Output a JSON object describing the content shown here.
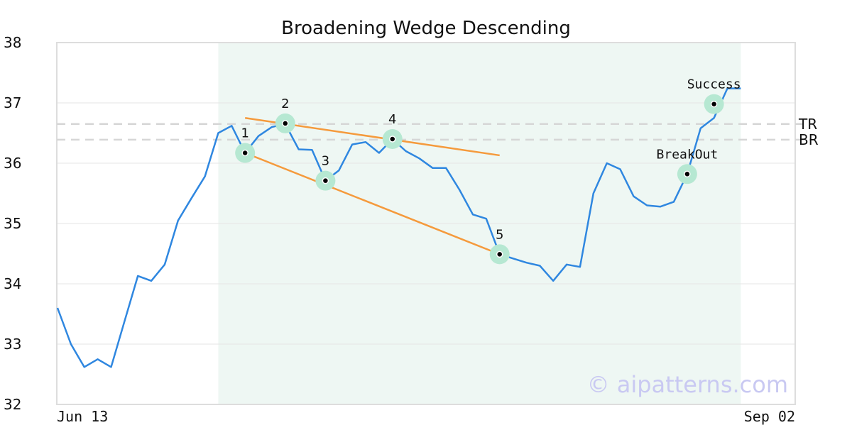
{
  "chart_data": {
    "type": "line",
    "title": "Broadening Wedge Descending",
    "ylim": [
      32,
      38
    ],
    "yticks": [
      "32",
      "33",
      "34",
      "35",
      "36",
      "37",
      "38"
    ],
    "xlabels": {
      "start": "Jun 13",
      "end": "Sep 02"
    },
    "grid": true,
    "colors": {
      "price": "#2f87e0",
      "trendline": "#f59a3c",
      "marker": "#b6e8d2",
      "shade": "#eef7f3",
      "level": "#d6d6d6"
    },
    "series": [
      {
        "values": [
          33.6,
          33.0,
          32.62,
          32.75,
          32.62,
          33.38,
          34.13,
          34.05,
          34.32,
          35.05,
          35.42,
          35.78,
          36.5,
          36.62,
          36.17,
          36.45,
          36.6,
          36.65,
          36.23,
          36.22,
          35.71,
          35.88,
          36.31,
          36.35,
          36.17,
          36.4,
          36.2,
          36.08,
          35.92,
          35.92,
          35.56,
          35.15,
          35.08,
          34.49,
          34.42,
          34.35,
          34.3,
          34.05,
          34.32,
          34.28,
          35.5,
          36.0,
          35.9,
          35.45,
          35.3,
          35.28,
          35.36,
          35.82,
          36.58,
          36.75,
          37.24,
          37.24
        ]
      }
    ],
    "highlight_range": [
      12,
      51
    ],
    "trendlines": [
      {
        "from": [
          14,
          36.75
        ],
        "to": [
          33,
          36.13
        ]
      },
      {
        "from": [
          14,
          36.17
        ],
        "to": [
          33,
          34.49
        ]
      }
    ],
    "points": [
      {
        "label": "1",
        "x": 14,
        "y": 36.17
      },
      {
        "label": "2",
        "x": 17,
        "y": 36.66
      },
      {
        "label": "3",
        "x": 20,
        "y": 35.71
      },
      {
        "label": "4",
        "x": 25,
        "y": 36.4
      },
      {
        "label": "5",
        "x": 33,
        "y": 34.49
      },
      {
        "label": "BreakOut",
        "x": 47,
        "y": 35.82
      },
      {
        "label": "Success",
        "x": 49,
        "y": 36.98
      }
    ],
    "levels": [
      {
        "label": "TR",
        "y": 36.65
      },
      {
        "label": "BR",
        "y": 36.39
      }
    ]
  },
  "watermark": "© aipatterns.com"
}
